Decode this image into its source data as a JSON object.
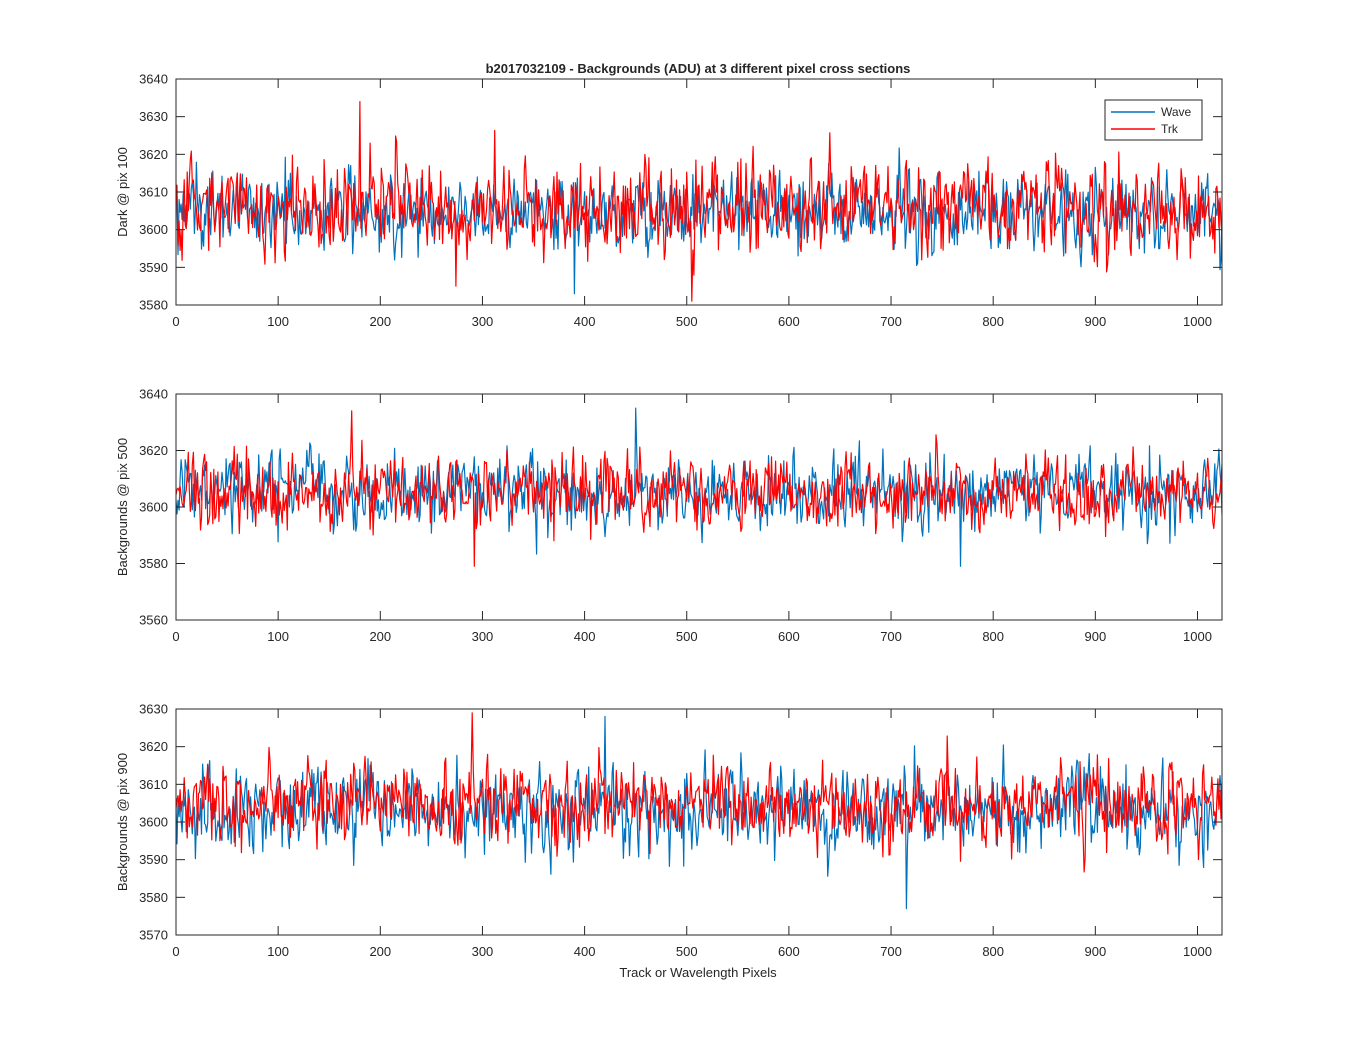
{
  "figure": {
    "title": "b2017032109 - Backgrounds (ADU) at 3 different pixel cross sections",
    "xlabel": "Track or Wavelength Pixels"
  },
  "legend": {
    "entries": [
      "Wave",
      "Trk"
    ],
    "placement": "top-right"
  },
  "colors": {
    "Wave": "#0072BD",
    "Trk": "#FF0000",
    "axis": "#262626"
  },
  "chart_data": [
    {
      "type": "line",
      "ylabel": "Dark @ pix 100",
      "xlim": [
        0,
        1024
      ],
      "ylim": [
        3580,
        3640
      ],
      "xticks": [
        0,
        100,
        200,
        300,
        400,
        500,
        600,
        700,
        800,
        900,
        1000
      ],
      "yticks": [
        3580,
        3590,
        3600,
        3610,
        3620,
        3630,
        3640
      ],
      "grid": false,
      "series": [
        {
          "name": "Wave",
          "approx_mean": 3605,
          "approx_range": [
            3583,
            3628
          ],
          "x_extent": [
            0,
            1024
          ]
        },
        {
          "name": "Trk",
          "approx_mean": 3606,
          "approx_range": [
            3581,
            3634
          ],
          "x_extent": [
            0,
            1024
          ]
        }
      ],
      "notable_points": [
        {
          "series": "Trk",
          "x": 180,
          "y": 3634
        },
        {
          "series": "Trk",
          "x": 505,
          "y": 3581
        },
        {
          "series": "Wave",
          "x": 390,
          "y": 3583
        }
      ]
    },
    {
      "type": "line",
      "ylabel": "Backgrounds @ pix 500",
      "xlim": [
        0,
        1024
      ],
      "ylim": [
        3560,
        3640
      ],
      "xticks": [
        0,
        100,
        200,
        300,
        400,
        500,
        600,
        700,
        800,
        900,
        1000
      ],
      "yticks": [
        3560,
        3580,
        3600,
        3620,
        3640
      ],
      "grid": false,
      "series": [
        {
          "name": "Wave",
          "approx_mean": 3605,
          "approx_range": [
            3579,
            3635
          ],
          "x_extent": [
            0,
            1024
          ]
        },
        {
          "name": "Trk",
          "approx_mean": 3605,
          "approx_range": [
            3579,
            3634
          ],
          "x_extent": [
            0,
            1024
          ]
        }
      ],
      "notable_points": [
        {
          "series": "Wave",
          "x": 450,
          "y": 3635
        },
        {
          "series": "Trk",
          "x": 172,
          "y": 3634
        },
        {
          "series": "Trk",
          "x": 292,
          "y": 3579
        },
        {
          "series": "Wave",
          "x": 768,
          "y": 3579
        }
      ]
    },
    {
      "type": "line",
      "ylabel": "Backgrounds @ pix 900",
      "xlim": [
        0,
        1024
      ],
      "ylim": [
        3570,
        3630
      ],
      "xticks": [
        0,
        100,
        200,
        300,
        400,
        500,
        600,
        700,
        800,
        900,
        1000
      ],
      "yticks": [
        3570,
        3580,
        3590,
        3600,
        3610,
        3620,
        3630
      ],
      "grid": false,
      "series": [
        {
          "name": "Wave",
          "approx_mean": 3603,
          "approx_range": [
            3577,
            3628
          ],
          "x_extent": [
            0,
            1024
          ]
        },
        {
          "name": "Trk",
          "approx_mean": 3605,
          "approx_range": [
            3581,
            3629
          ],
          "x_extent": [
            0,
            1024
          ]
        }
      ],
      "notable_points": [
        {
          "series": "Trk",
          "x": 290,
          "y": 3629
        },
        {
          "series": "Wave",
          "x": 715,
          "y": 3577
        },
        {
          "series": "Wave",
          "x": 420,
          "y": 3628
        }
      ]
    }
  ]
}
